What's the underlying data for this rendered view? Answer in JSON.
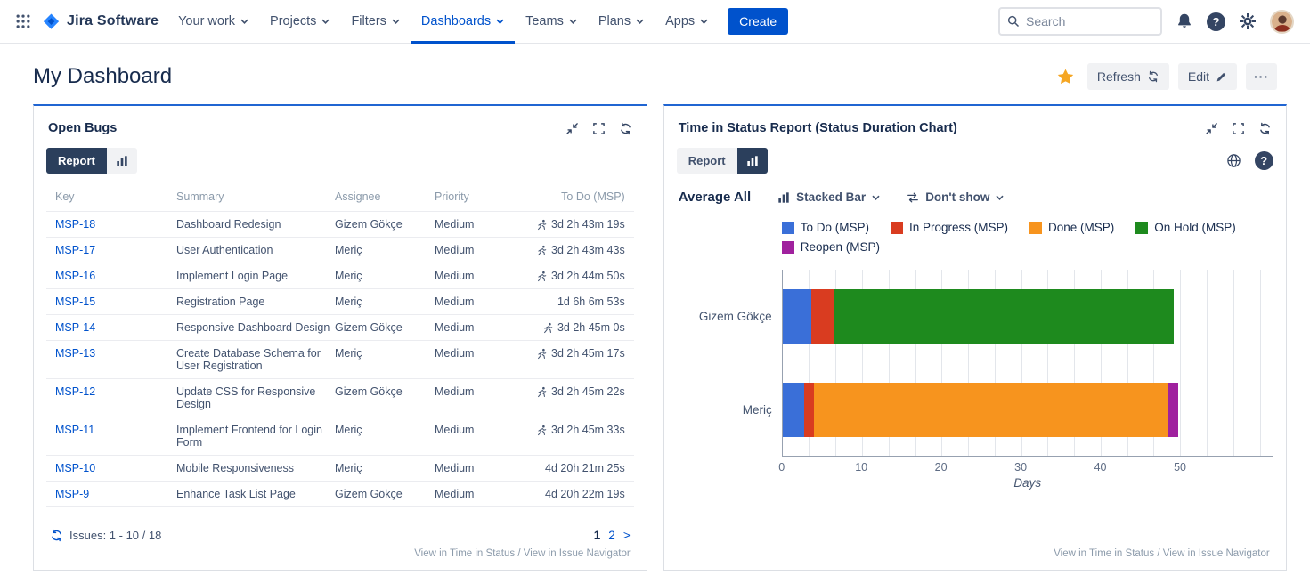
{
  "nav": {
    "brand": "Jira Software",
    "items": [
      {
        "label": "Your work",
        "active": false
      },
      {
        "label": "Projects",
        "active": false
      },
      {
        "label": "Filters",
        "active": false
      },
      {
        "label": "Dashboards",
        "active": true
      },
      {
        "label": "Teams",
        "active": false
      },
      {
        "label": "Plans",
        "active": false
      },
      {
        "label": "Apps",
        "active": false
      }
    ],
    "create_label": "Create",
    "search_placeholder": "Search"
  },
  "icons": {
    "help_glyph": "?",
    "more_glyph": "···"
  },
  "page": {
    "title": "My Dashboard",
    "refresh_label": "Refresh",
    "edit_label": "Edit"
  },
  "open_bugs": {
    "title": "Open Bugs",
    "tabs": {
      "report": "Report"
    },
    "columns": [
      "Key",
      "Summary",
      "Assignee",
      "Priority",
      "To Do (MSP)"
    ],
    "rows": [
      {
        "key": "MSP-18",
        "summary": "Dashboard Redesign",
        "assignee": "Gizem Gökçe",
        "priority": "Medium",
        "time": "3d 2h 43m 19s",
        "running": true
      },
      {
        "key": "MSP-17",
        "summary": "User Authentication",
        "assignee": "Meriç",
        "priority": "Medium",
        "time": "3d 2h 43m 43s",
        "running": true
      },
      {
        "key": "MSP-16",
        "summary": "Implement Login Page",
        "assignee": "Meriç",
        "priority": "Medium",
        "time": "3d 2h 44m 50s",
        "running": true
      },
      {
        "key": "MSP-15",
        "summary": "Registration Page",
        "assignee": "Meriç",
        "priority": "Medium",
        "time": "1d 6h 6m 53s",
        "running": false
      },
      {
        "key": "MSP-14",
        "summary": "Responsive Dashboard Design",
        "assignee": "Gizem Gökçe",
        "priority": "Medium",
        "time": "3d 2h 45m 0s",
        "running": true
      },
      {
        "key": "MSP-13",
        "summary": "Create Database Schema for User Registration",
        "assignee": "Meriç",
        "priority": "Medium",
        "time": "3d 2h 45m 17s",
        "running": true
      },
      {
        "key": "MSP-12",
        "summary": "Update CSS for Responsive Design",
        "assignee": "Gizem Gökçe",
        "priority": "Medium",
        "time": "3d 2h 45m 22s",
        "running": true
      },
      {
        "key": "MSP-11",
        "summary": "Implement Frontend for Login Form",
        "assignee": "Meriç",
        "priority": "Medium",
        "time": "3d 2h 45m 33s",
        "running": true
      },
      {
        "key": "MSP-10",
        "summary": "Mobile Responsiveness",
        "assignee": "Meriç",
        "priority": "Medium",
        "time": "4d 20h 21m 25s",
        "running": false
      },
      {
        "key": "MSP-9",
        "summary": "Enhance Task List Page",
        "assignee": "Gizem Gökçe",
        "priority": "Medium",
        "time": "4d 20h 22m 19s",
        "running": false
      }
    ],
    "footer": {
      "issues_text": "Issues: 1 - 10 / 18",
      "pages": [
        {
          "label": "1",
          "current": true
        },
        {
          "label": "2",
          "current": false
        },
        {
          "label": ">",
          "current": false
        }
      ],
      "link_time": "View in Time in Status",
      "link_sep": " / ",
      "link_nav": "View in Issue Navigator"
    }
  },
  "time_report": {
    "title": "Time in Status Report (Status Duration Chart)",
    "tabs": {
      "report": "Report"
    },
    "average_label": "Average All",
    "chart_type": "Stacked Bar",
    "show_option": "Don't show",
    "link_time": "View in Time in Status",
    "link_sep": " / ",
    "link_nav": "View in Issue Navigator"
  },
  "chart_data": {
    "type": "bar",
    "orientation": "horizontal",
    "stacked": true,
    "title": "Time in Status Report (Status Duration Chart)",
    "categories": [
      "Gizem Gökçe",
      "Meriç"
    ],
    "series": [
      {
        "name": "To Do (MSP)",
        "color": "#3A6FD8",
        "values": [
          3.6,
          2.7
        ]
      },
      {
        "name": "In Progress (MSP)",
        "color": "#D93C20",
        "values": [
          2.9,
          1.2
        ]
      },
      {
        "name": "Done (MSP)",
        "color": "#F7941E",
        "values": [
          0,
          44.5
        ]
      },
      {
        "name": "On Hold (MSP)",
        "color": "#1E8A1E",
        "values": [
          42.7,
          0
        ]
      },
      {
        "name": "Reopen (MSP)",
        "color": "#A0219E",
        "values": [
          0,
          1.4
        ]
      }
    ],
    "xlabel": "Days",
    "xlim": [
      0,
      61.7
    ],
    "xticks": [
      0,
      10,
      20,
      30,
      40,
      50
    ],
    "grid_step": 3.3333,
    "legend_position": "top",
    "grid": true
  }
}
